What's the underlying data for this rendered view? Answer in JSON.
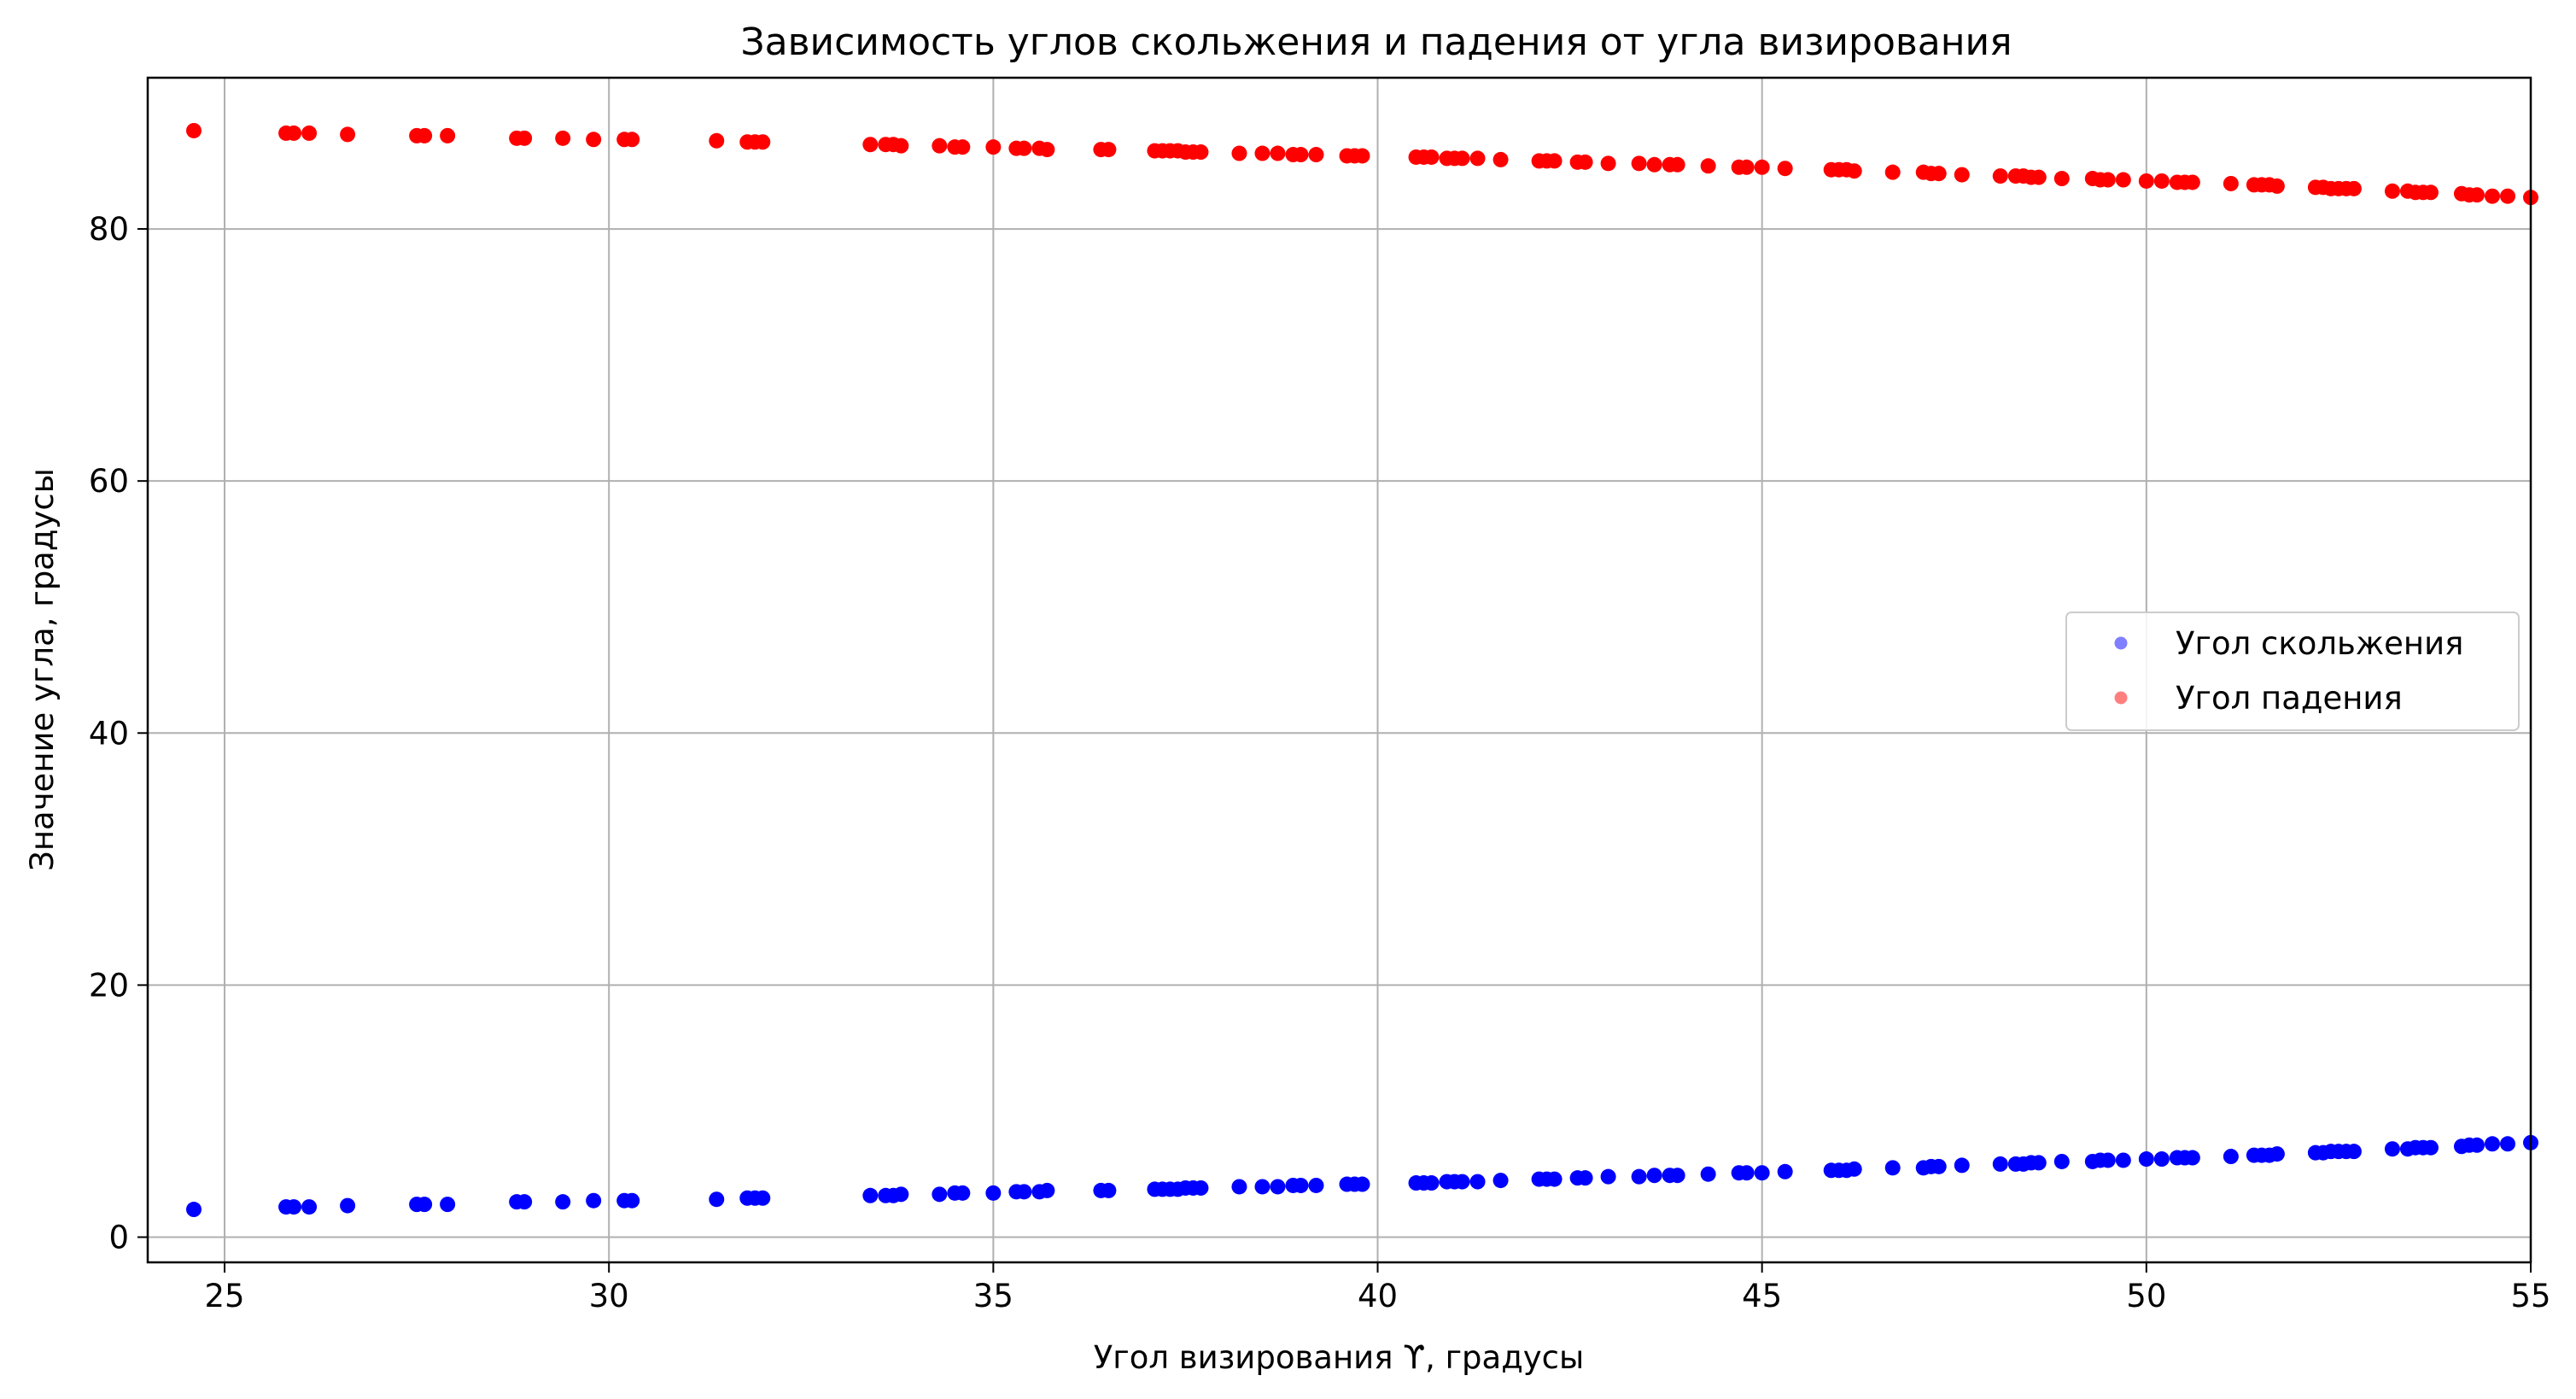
{
  "chart_data": {
    "type": "scatter",
    "title": "Зависимость углов скольжения и падения от угла визирования",
    "xlabel": "Угол визирования ϒ, градусы",
    "ylabel": "Значение угла, градусы",
    "xlim": [
      24,
      55
    ],
    "ylim": [
      -2,
      92
    ],
    "xticks": [
      25,
      30,
      35,
      40,
      45,
      50,
      55
    ],
    "yticks": [
      0,
      20,
      40,
      60,
      80
    ],
    "grid": true,
    "legend_position": "center-right",
    "series": [
      {
        "name": "Угол скольжения",
        "color": "#0000ff",
        "x": [
          24.6,
          25.8,
          25.9,
          26.1,
          26.6,
          27.5,
          27.6,
          27.9,
          28.8,
          28.9,
          29.4,
          29.8,
          30.2,
          30.3,
          31.4,
          31.8,
          31.9,
          32.0,
          33.4,
          33.6,
          33.7,
          33.8,
          34.3,
          34.5,
          34.6,
          35.0,
          35.3,
          35.4,
          35.6,
          35.7,
          36.4,
          36.5,
          37.1,
          37.2,
          37.3,
          37.4,
          37.5,
          37.6,
          37.7,
          38.2,
          38.5,
          38.7,
          38.9,
          39.0,
          39.2,
          39.6,
          39.7,
          39.8,
          40.5,
          40.6,
          40.7,
          40.9,
          41.0,
          41.1,
          41.3,
          41.6,
          42.1,
          42.2,
          42.3,
          42.6,
          42.7,
          43.0,
          43.4,
          43.6,
          43.8,
          43.9,
          44.3,
          44.7,
          44.8,
          45.0,
          45.3,
          45.9,
          46.0,
          46.1,
          46.2,
          46.7,
          47.1,
          47.2,
          47.3,
          47.6,
          48.1,
          48.3,
          48.4,
          48.5,
          48.6,
          48.9,
          49.3,
          49.4,
          49.5,
          49.7,
          50.0,
          50.2,
          50.4,
          50.5,
          50.6,
          51.1,
          51.4,
          51.5,
          51.6,
          51.7,
          52.2,
          52.3,
          52.4,
          52.5,
          52.6,
          52.7,
          53.2,
          53.4,
          53.5,
          53.6,
          53.7,
          54.1,
          54.2,
          54.3,
          54.5,
          54.7,
          55.0
        ],
        "y": [
          2.2,
          2.4,
          2.4,
          2.4,
          2.5,
          2.6,
          2.6,
          2.6,
          2.8,
          2.8,
          2.8,
          2.9,
          2.9,
          2.9,
          3.0,
          3.1,
          3.1,
          3.1,
          3.3,
          3.3,
          3.3,
          3.4,
          3.4,
          3.5,
          3.5,
          3.5,
          3.6,
          3.6,
          3.6,
          3.7,
          3.7,
          3.7,
          3.8,
          3.8,
          3.8,
          3.8,
          3.9,
          3.9,
          3.9,
          4.0,
          4.0,
          4.0,
          4.1,
          4.1,
          4.1,
          4.2,
          4.2,
          4.2,
          4.3,
          4.3,
          4.3,
          4.4,
          4.4,
          4.4,
          4.4,
          4.5,
          4.6,
          4.6,
          4.6,
          4.7,
          4.7,
          4.8,
          4.8,
          4.9,
          4.9,
          4.9,
          5.0,
          5.1,
          5.1,
          5.1,
          5.2,
          5.3,
          5.3,
          5.3,
          5.4,
          5.5,
          5.5,
          5.6,
          5.6,
          5.7,
          5.8,
          5.8,
          5.8,
          5.9,
          5.9,
          6.0,
          6.0,
          6.1,
          6.1,
          6.1,
          6.2,
          6.2,
          6.3,
          6.3,
          6.3,
          6.4,
          6.5,
          6.5,
          6.5,
          6.6,
          6.7,
          6.7,
          6.8,
          6.8,
          6.8,
          6.8,
          7.0,
          7.0,
          7.1,
          7.1,
          7.1,
          7.2,
          7.3,
          7.3,
          7.4,
          7.4,
          7.5
        ]
      },
      {
        "name": "Угол падения",
        "color": "#ff0000",
        "x": [
          24.6,
          25.8,
          25.9,
          26.1,
          26.6,
          27.5,
          27.6,
          27.9,
          28.8,
          28.9,
          29.4,
          29.8,
          30.2,
          30.3,
          31.4,
          31.8,
          31.9,
          32.0,
          33.4,
          33.6,
          33.7,
          33.8,
          34.3,
          34.5,
          34.6,
          35.0,
          35.3,
          35.4,
          35.6,
          35.7,
          36.4,
          36.5,
          37.1,
          37.2,
          37.3,
          37.4,
          37.5,
          37.6,
          37.7,
          38.2,
          38.5,
          38.7,
          38.9,
          39.0,
          39.2,
          39.6,
          39.7,
          39.8,
          40.5,
          40.6,
          40.7,
          40.9,
          41.0,
          41.1,
          41.3,
          41.6,
          42.1,
          42.2,
          42.3,
          42.6,
          42.7,
          43.0,
          43.4,
          43.6,
          43.8,
          43.9,
          44.3,
          44.7,
          44.8,
          45.0,
          45.3,
          45.9,
          46.0,
          46.1,
          46.2,
          46.7,
          47.1,
          47.2,
          47.3,
          47.6,
          48.1,
          48.3,
          48.4,
          48.5,
          48.6,
          48.9,
          49.3,
          49.4,
          49.5,
          49.7,
          50.0,
          50.2,
          50.4,
          50.5,
          50.6,
          51.1,
          51.4,
          51.5,
          51.6,
          51.7,
          52.2,
          52.3,
          52.4,
          52.5,
          52.6,
          52.7,
          53.2,
          53.4,
          53.5,
          53.6,
          53.7,
          54.1,
          54.2,
          54.3,
          54.5,
          54.7,
          55.0
        ],
        "y": [
          87.8,
          87.6,
          87.6,
          87.6,
          87.5,
          87.4,
          87.4,
          87.4,
          87.2,
          87.2,
          87.2,
          87.1,
          87.1,
          87.1,
          87.0,
          86.9,
          86.9,
          86.9,
          86.7,
          86.7,
          86.7,
          86.6,
          86.6,
          86.5,
          86.5,
          86.5,
          86.4,
          86.4,
          86.4,
          86.3,
          86.3,
          86.3,
          86.2,
          86.2,
          86.2,
          86.2,
          86.1,
          86.1,
          86.1,
          86.0,
          86.0,
          86.0,
          85.9,
          85.9,
          85.9,
          85.8,
          85.8,
          85.8,
          85.7,
          85.7,
          85.7,
          85.6,
          85.6,
          85.6,
          85.6,
          85.5,
          85.4,
          85.4,
          85.4,
          85.3,
          85.3,
          85.2,
          85.2,
          85.1,
          85.1,
          85.1,
          85.0,
          84.9,
          84.9,
          84.9,
          84.8,
          84.7,
          84.7,
          84.7,
          84.6,
          84.5,
          84.5,
          84.4,
          84.4,
          84.3,
          84.2,
          84.2,
          84.2,
          84.1,
          84.1,
          84.0,
          84.0,
          83.9,
          83.9,
          83.9,
          83.8,
          83.8,
          83.7,
          83.7,
          83.7,
          83.6,
          83.5,
          83.5,
          83.5,
          83.4,
          83.3,
          83.3,
          83.2,
          83.2,
          83.2,
          83.2,
          83.0,
          83.0,
          82.9,
          82.9,
          82.9,
          82.8,
          82.7,
          82.7,
          82.6,
          82.6,
          82.5
        ]
      }
    ]
  }
}
